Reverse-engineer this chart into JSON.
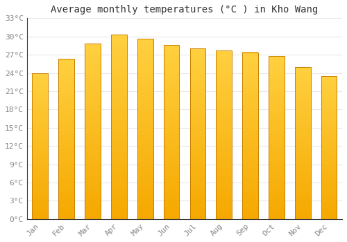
{
  "months": [
    "Jan",
    "Feb",
    "Mar",
    "Apr",
    "May",
    "Jun",
    "Jul",
    "Aug",
    "Sep",
    "Oct",
    "Nov",
    "Dec"
  ],
  "temperatures": [
    23.9,
    26.3,
    28.8,
    30.3,
    29.6,
    28.6,
    28.0,
    27.7,
    27.4,
    26.8,
    25.0,
    23.5
  ],
  "bar_color_bottom": "#F5A800",
  "bar_color_top": "#FFD040",
  "bar_edge_color": "#C88000",
  "title": "Average monthly temperatures (°C ) in Kho Wang",
  "ylim": [
    0,
    33
  ],
  "yticks": [
    0,
    3,
    6,
    9,
    12,
    15,
    18,
    21,
    24,
    27,
    30,
    33
  ],
  "ytick_labels": [
    "0°C",
    "3°C",
    "6°C",
    "9°C",
    "12°C",
    "15°C",
    "18°C",
    "21°C",
    "24°C",
    "27°C",
    "30°C",
    "33°C"
  ],
  "background_color": "#ffffff",
  "grid_color": "#e8e8e8",
  "title_fontsize": 10,
  "tick_fontsize": 8,
  "font_family": "monospace",
  "bar_width": 0.6,
  "figsize": [
    5.0,
    3.5
  ],
  "dpi": 100
}
